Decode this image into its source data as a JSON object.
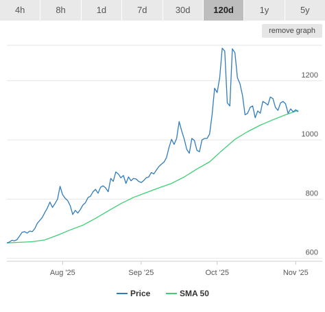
{
  "timeframes": {
    "items": [
      "4h",
      "8h",
      "1d",
      "7d",
      "30d",
      "120d",
      "1y",
      "5y"
    ],
    "active": "120d"
  },
  "actions": {
    "remove_graph": "remove graph"
  },
  "colors": {
    "price": "#2f7bbd",
    "sma": "#3ccf73"
  },
  "chart_data": {
    "type": "line",
    "title": "",
    "xlabel": "",
    "ylabel": "",
    "ylim": [
      590,
      1320
    ],
    "y_ticks": [
      600,
      800,
      1000,
      1200
    ],
    "x_ticks": [
      {
        "day": 22,
        "label": "Aug '25"
      },
      {
        "day": 53,
        "label": "Sep '25"
      },
      {
        "day": 83,
        "label": "Oct '25"
      },
      {
        "day": 114,
        "label": "Nov '25"
      }
    ],
    "grid": true,
    "legend_position": "bottom-center",
    "series": [
      {
        "name": "Price",
        "x": [
          0,
          1,
          2,
          3,
          4,
          5,
          6,
          7,
          8,
          9,
          10,
          11,
          12,
          13,
          14,
          15,
          16,
          17,
          18,
          19,
          20,
          21,
          22,
          23,
          24,
          25,
          26,
          27,
          28,
          29,
          30,
          31,
          32,
          33,
          34,
          35,
          36,
          37,
          38,
          39,
          40,
          41,
          42,
          43,
          44,
          45,
          46,
          47,
          48,
          49,
          50,
          51,
          52,
          53,
          54,
          55,
          56,
          57,
          58,
          59,
          60,
          61,
          62,
          63,
          64,
          65,
          66,
          67,
          68,
          69,
          70,
          71,
          72,
          73,
          74,
          75,
          76,
          77,
          78,
          79,
          80,
          81,
          82,
          83,
          84,
          85,
          86,
          87,
          88,
          89,
          90,
          91,
          92,
          93,
          94,
          95,
          96,
          97,
          98,
          99,
          100,
          101,
          102,
          103,
          104,
          105,
          106,
          107,
          108,
          109,
          110,
          111,
          112,
          113,
          114,
          115
        ],
        "values": [
          652,
          655,
          661,
          659,
          663,
          675,
          688,
          690,
          685,
          692,
          690,
          700,
          718,
          728,
          738,
          755,
          770,
          790,
          772,
          785,
          800,
          843,
          815,
          803,
          795,
          778,
          748,
          762,
          753,
          765,
          780,
          788,
          805,
          810,
          825,
          833,
          820,
          840,
          845,
          838,
          825,
          870,
          860,
          892,
          885,
          872,
          880,
          853,
          875,
          862,
          870,
          868,
          860,
          856,
          863,
          872,
          875,
          890,
          885,
          898,
          910,
          918,
          925,
          940,
          975,
          1002,
          985,
          1005,
          1062,
          1030,
          1003,
          968,
          955,
          1005,
          998,
          965,
          960,
          1000,
          1005,
          1005,
          1020,
          1085,
          1175,
          1160,
          1210,
          1310,
          1300,
          1125,
          1115,
          1308,
          1295,
          1210,
          1190,
          1150,
          1085,
          1090,
          1110,
          1115,
          1075,
          1098,
          1090,
          1130,
          1125,
          1118,
          1145,
          1140,
          1110,
          1100,
          1125,
          1130,
          1122,
          1090,
          1105,
          1095,
          1102,
          1095
        ],
        "color": "#2f7bbd"
      },
      {
        "name": "SMA 50",
        "x": [
          0,
          5,
          10,
          15,
          20,
          25,
          30,
          35,
          40,
          45,
          50,
          55,
          60,
          65,
          70,
          75,
          80,
          85,
          90,
          95,
          100,
          105,
          110,
          115
        ],
        "values": [
          652,
          654,
          656,
          662,
          678,
          696,
          712,
          735,
          760,
          785,
          806,
          822,
          838,
          853,
          875,
          902,
          926,
          965,
          1002,
          1028,
          1050,
          1068,
          1085,
          1100
        ],
        "color": "#3ccf73"
      }
    ]
  }
}
